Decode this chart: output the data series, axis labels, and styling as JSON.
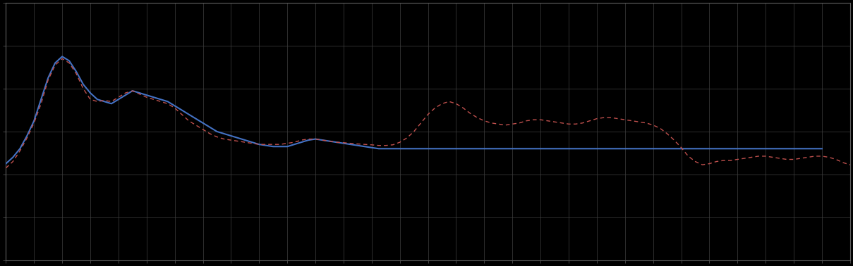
{
  "background_color": "#000000",
  "plot_bg_color": "#000000",
  "grid_color": "#404040",
  "spine_color": "#606060",
  "figsize": [
    12.09,
    3.78
  ],
  "dpi": 100,
  "blue_line_color": "#4472c4",
  "red_line_color": "#c0504d",
  "blue_linewidth": 1.5,
  "red_linewidth": 1.0,
  "xlim": [
    0,
    120
  ],
  "ylim": [
    -4,
    8
  ],
  "blue_y": [
    0.5,
    0.8,
    1.2,
    1.8,
    2.5,
    3.5,
    4.5,
    5.2,
    5.5,
    5.3,
    4.8,
    4.2,
    3.8,
    3.5,
    3.4,
    3.3,
    3.5,
    3.7,
    3.9,
    3.8,
    3.7,
    3.6,
    3.5,
    3.4,
    3.2,
    3.0,
    2.8,
    2.6,
    2.4,
    2.2,
    2.0,
    1.9,
    1.8,
    1.7,
    1.6,
    1.5,
    1.4,
    1.35,
    1.3,
    1.3,
    1.3,
    1.4,
    1.5,
    1.6,
    1.65,
    1.6,
    1.55,
    1.5,
    1.45,
    1.4,
    1.35,
    1.3,
    1.25,
    1.2,
    1.2,
    1.2,
    1.2,
    1.2,
    1.2,
    1.2,
    1.2,
    1.2,
    1.2,
    1.2,
    1.2,
    1.2,
    1.2,
    1.2,
    1.2,
    1.2,
    1.2,
    1.2,
    1.2,
    1.2,
    1.2,
    1.2,
    1.2,
    1.2,
    1.2,
    1.2,
    1.2,
    1.2,
    1.2,
    1.2,
    1.2,
    1.2,
    1.2,
    1.2,
    1.2,
    1.2,
    1.2,
    1.2,
    1.2,
    1.2,
    1.2,
    1.2,
    1.2,
    1.2,
    1.2,
    1.2,
    1.2,
    1.2,
    1.2,
    1.2,
    1.2,
    1.2,
    1.2,
    1.2,
    1.2,
    1.2,
    1.2,
    1.2,
    1.2,
    1.2,
    1.2,
    1.2,
    1.2
  ],
  "red_y": [
    0.3,
    0.6,
    1.1,
    1.7,
    2.4,
    3.3,
    4.4,
    5.1,
    5.4,
    5.2,
    4.7,
    4.0,
    3.5,
    3.4,
    3.45,
    3.4,
    3.6,
    3.8,
    3.9,
    3.75,
    3.6,
    3.5,
    3.4,
    3.3,
    3.1,
    2.8,
    2.5,
    2.3,
    2.1,
    1.9,
    1.75,
    1.65,
    1.6,
    1.55,
    1.5,
    1.45,
    1.4,
    1.4,
    1.4,
    1.4,
    1.45,
    1.5,
    1.6,
    1.65,
    1.65,
    1.6,
    1.55,
    1.5,
    1.48,
    1.45,
    1.42,
    1.4,
    1.38,
    1.35,
    1.35,
    1.38,
    1.5,
    1.7,
    2.0,
    2.4,
    2.8,
    3.1,
    3.3,
    3.4,
    3.3,
    3.1,
    2.85,
    2.65,
    2.5,
    2.4,
    2.35,
    2.3,
    2.35,
    2.4,
    2.5,
    2.55,
    2.55,
    2.5,
    2.45,
    2.4,
    2.35,
    2.35,
    2.4,
    2.5,
    2.6,
    2.65,
    2.65,
    2.6,
    2.55,
    2.5,
    2.45,
    2.4,
    2.3,
    2.15,
    1.9,
    1.6,
    1.25,
    0.85,
    0.6,
    0.45,
    0.5,
    0.6,
    0.65,
    0.65,
    0.7,
    0.75,
    0.8,
    0.85,
    0.85,
    0.8,
    0.75,
    0.7,
    0.7,
    0.75,
    0.8,
    0.85,
    0.85,
    0.8,
    0.7,
    0.55,
    0.45,
    0.5
  ]
}
